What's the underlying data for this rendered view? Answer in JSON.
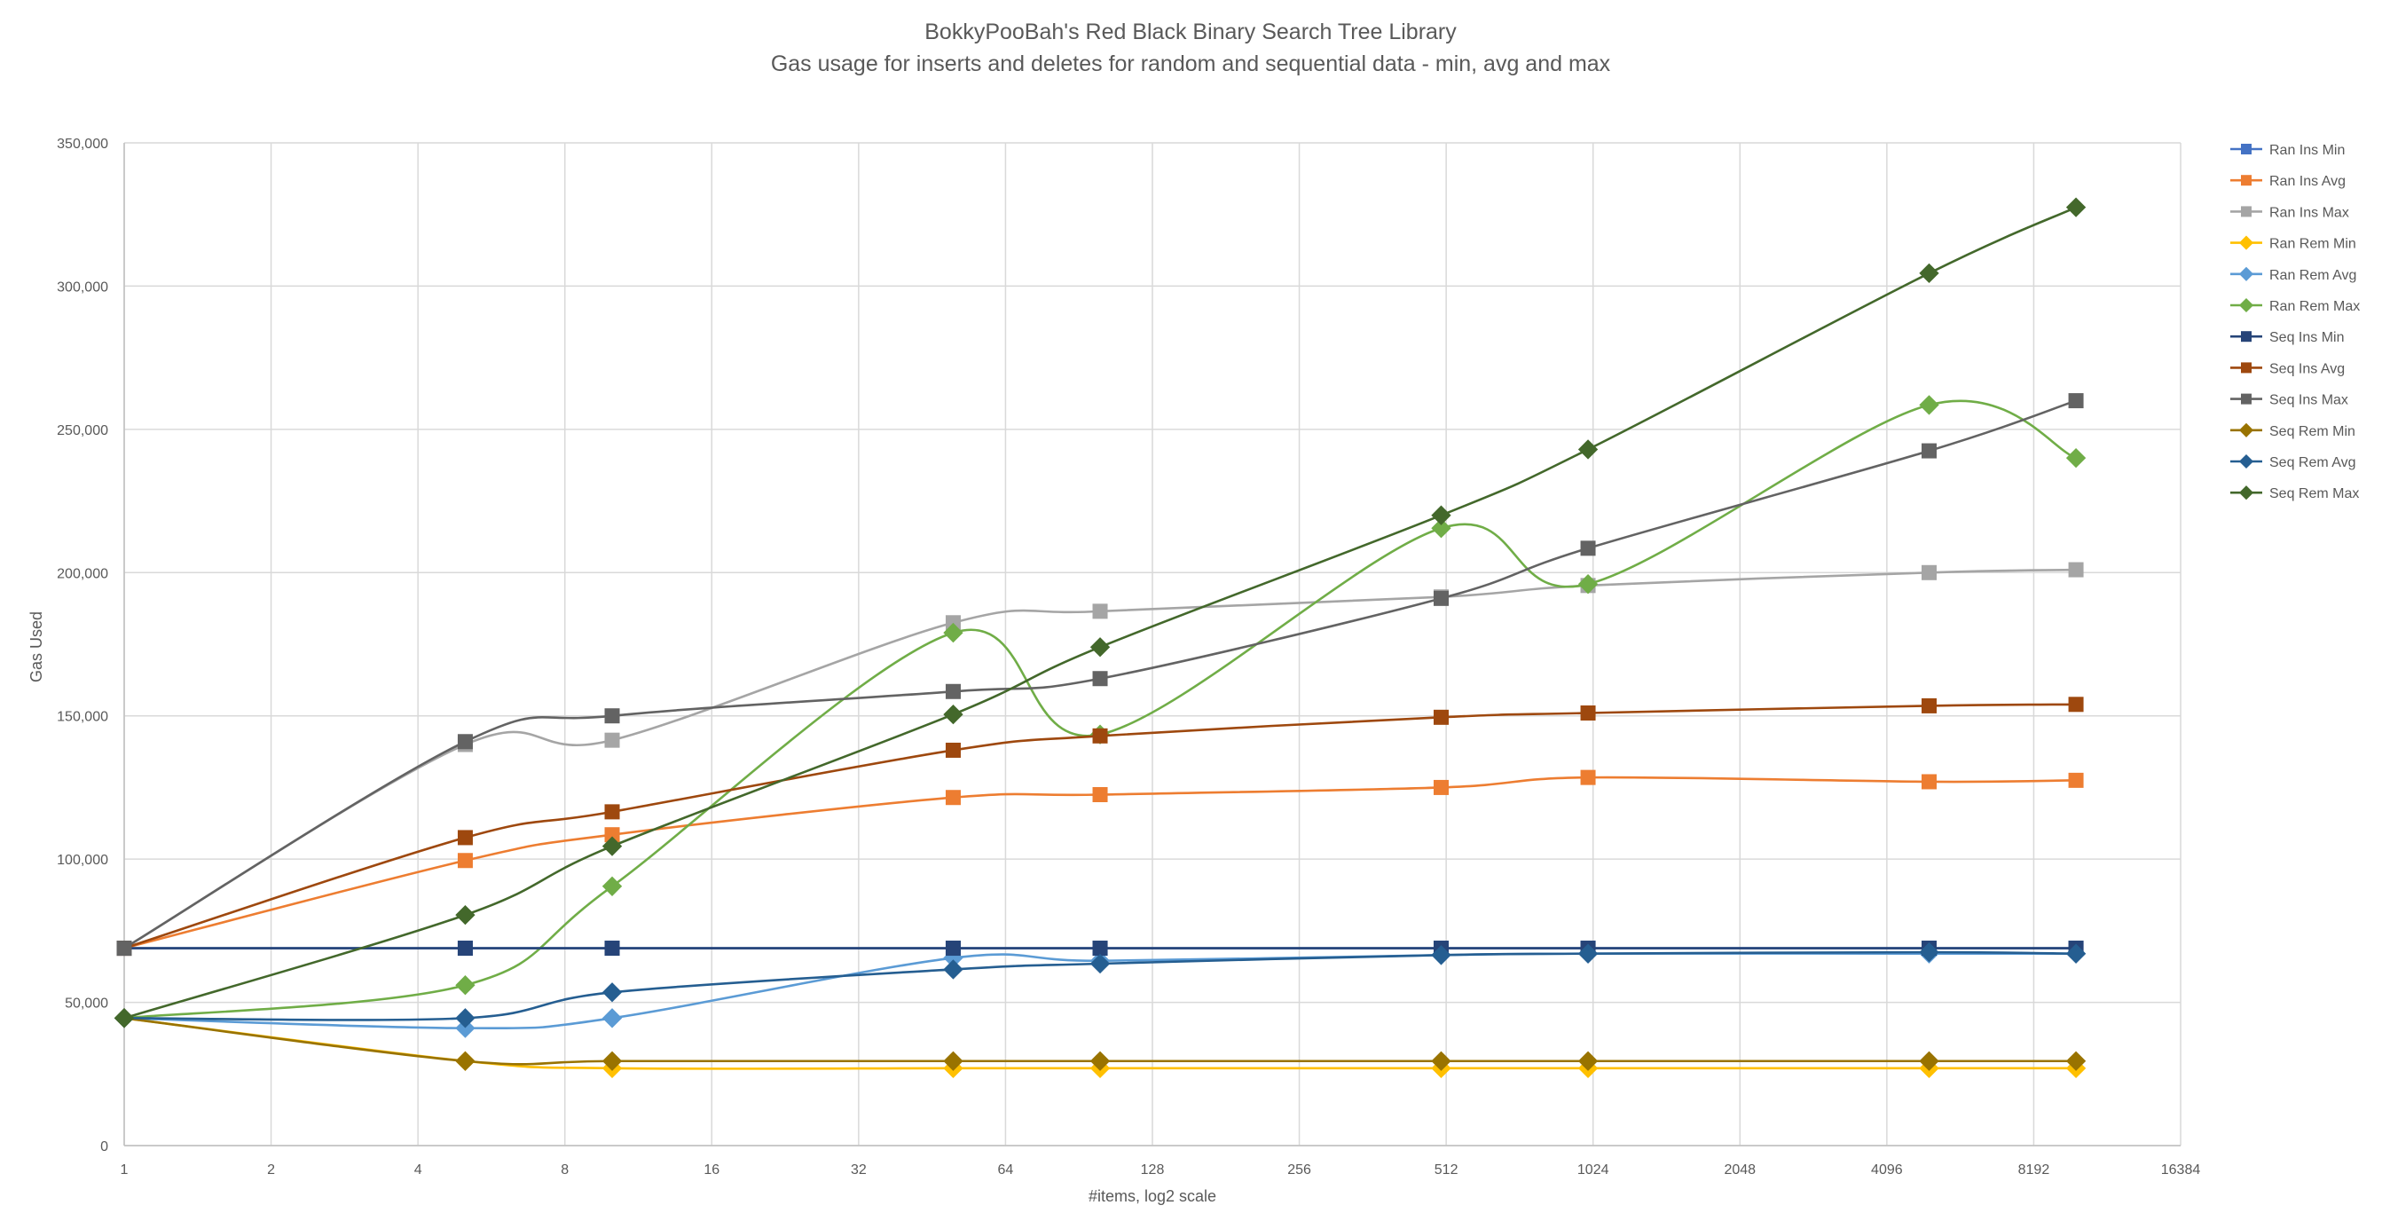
{
  "chart_data": {
    "type": "line",
    "title": "BokkyPooBah's Red Black Binary Search Tree Library",
    "subtitle": "Gas usage for inserts and deletes for random and sequential data - min, avg and max",
    "xlabel": "#items, log2 scale",
    "ylabel": "Gas Used",
    "x_scale": "log2",
    "xlim": [
      1,
      16384
    ],
    "ylim": [
      0,
      350000
    ],
    "x_ticks": [
      1,
      2,
      4,
      8,
      16,
      32,
      64,
      128,
      256,
      512,
      1024,
      2048,
      4096,
      8192,
      16384
    ],
    "x_tick_labels": [
      "1",
      "2",
      "4",
      "8",
      "16",
      "32",
      "64",
      "128",
      "256",
      "512",
      "1024",
      "2048",
      "4096",
      "8192",
      "16384"
    ],
    "y_ticks": [
      0,
      50000,
      100000,
      150000,
      200000,
      250000,
      300000,
      350000
    ],
    "y_tick_labels": [
      "0",
      "50,000",
      "100,000",
      "150,000",
      "200,000",
      "250,000",
      "300,000",
      "350,000"
    ],
    "grid": true,
    "legend_position": "right",
    "x": [
      1,
      5,
      10,
      50,
      100,
      500,
      1000,
      5000,
      10000
    ],
    "series": [
      {
        "name": "Ran Ins Min",
        "color": "#4472C4",
        "marker": "square",
        "values": [
          68900,
          68900,
          68900,
          68900,
          68900,
          68900,
          68900,
          68900,
          68900
        ]
      },
      {
        "name": "Ran Ins Avg",
        "color": "#ED7D31",
        "marker": "square",
        "values": [
          68900,
          99500,
          108500,
          121500,
          122500,
          125000,
          128500,
          127000,
          127500
        ]
      },
      {
        "name": "Ran Ins Max",
        "color": "#A5A5A5",
        "marker": "square",
        "values": [
          68900,
          140000,
          141500,
          182500,
          186500,
          191500,
          195500,
          200000,
          201000
        ]
      },
      {
        "name": "Ran Rem Min",
        "color": "#FFC000",
        "marker": "diamond",
        "values": [
          44500,
          29500,
          27000,
          27000,
          27000,
          27000,
          27000,
          27000,
          27000
        ]
      },
      {
        "name": "Ran Rem Avg",
        "color": "#5B9BD5",
        "marker": "diamond",
        "values": [
          44500,
          41000,
          44500,
          65500,
          64500,
          66500,
          67000,
          67000,
          67000
        ]
      },
      {
        "name": "Ran Rem Max",
        "color": "#70AD47",
        "marker": "diamond",
        "values": [
          44500,
          56000,
          90500,
          179000,
          143500,
          215500,
          196000,
          258500,
          240000
        ]
      },
      {
        "name": "Seq Ins Min",
        "color": "#264478",
        "marker": "square",
        "values": [
          68900,
          68900,
          68900,
          68900,
          68900,
          68900,
          68900,
          68900,
          68900
        ]
      },
      {
        "name": "Seq Ins Avg",
        "color": "#9E480E",
        "marker": "square",
        "values": [
          68900,
          107500,
          116500,
          138000,
          143000,
          149500,
          151000,
          153500,
          154000
        ]
      },
      {
        "name": "Seq Ins Max",
        "color": "#636363",
        "marker": "square",
        "values": [
          68900,
          141000,
          150000,
          158500,
          163000,
          191000,
          208500,
          242500,
          260000
        ]
      },
      {
        "name": "Seq Rem Min",
        "color": "#997300",
        "marker": "diamond",
        "values": [
          44500,
          29500,
          29500,
          29500,
          29500,
          29500,
          29500,
          29500,
          29500
        ]
      },
      {
        "name": "Seq Rem Avg",
        "color": "#255E91",
        "marker": "diamond",
        "values": [
          44500,
          44500,
          53500,
          61500,
          63500,
          66500,
          67000,
          67500,
          67000
        ]
      },
      {
        "name": "Seq Rem Max",
        "color": "#43682B",
        "marker": "diamond",
        "values": [
          44500,
          80500,
          104500,
          150500,
          174000,
          220000,
          243000,
          304500,
          327500
        ]
      }
    ]
  }
}
